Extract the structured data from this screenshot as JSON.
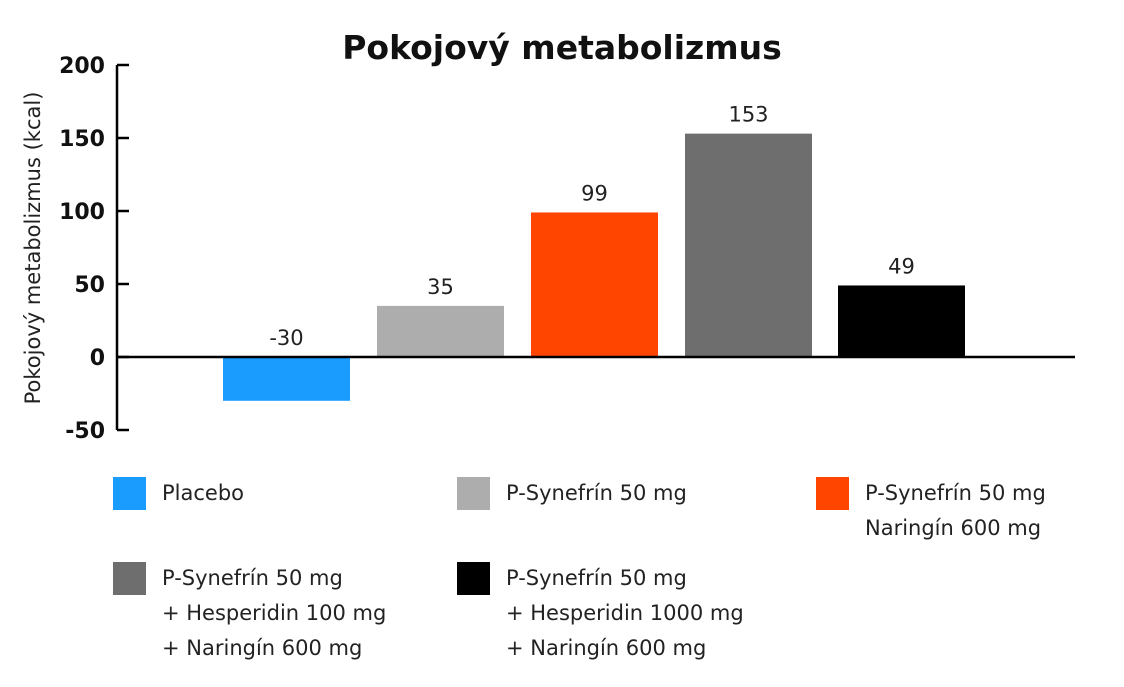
{
  "chart_data": {
    "type": "bar",
    "title": "Pokojový metabolizmus",
    "ylabel": "Pokojový metabolizmus (kcal)",
    "xlabel": "",
    "ylim": [
      -50,
      200
    ],
    "yticks": [
      200,
      150,
      100,
      50,
      0,
      -50
    ],
    "grid": false,
    "legend_position": "bottom",
    "categories": [
      [
        "Placebo"
      ],
      [
        "P-Synefrín 50 mg"
      ],
      [
        "P-Synefrín 50 mg",
        "Naringín 600 mg"
      ],
      [
        "P-Synefrín 50 mg",
        "+ Hesperidin 100 mg",
        "+ Naringín 600 mg"
      ],
      [
        "P-Synefrín 50 mg",
        "+ Hesperidin 1000 mg",
        "+ Naringín 600 mg"
      ]
    ],
    "values": [
      -30,
      35,
      99,
      153,
      49
    ],
    "data_labels": [
      "-30",
      "35",
      "99",
      "153",
      "49"
    ],
    "colors": [
      "#1a9cff",
      "#adadad",
      "#ff4500",
      "#6e6e6e",
      "#000000"
    ]
  }
}
